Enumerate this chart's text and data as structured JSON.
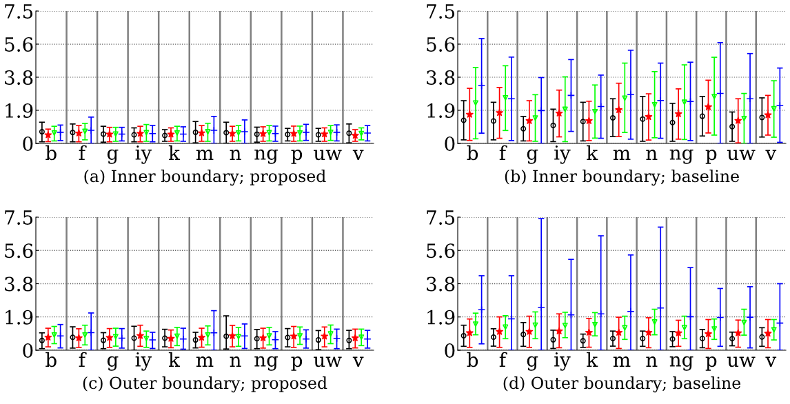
{
  "chart_data": [
    {
      "type": "scatter",
      "xlabel": "(a) Inner boundary; proposed",
      "categories": [
        "b",
        "f",
        "g",
        "iy",
        "k",
        "m",
        "n",
        "ng",
        "p",
        "uw",
        "v"
      ],
      "ylim": [
        0,
        7.5
      ],
      "yticks": [
        0,
        {
          "value": 1.875,
          "label": "1.9"
        },
        {
          "value": 3.75,
          "label": "3.8"
        },
        {
          "value": 5.625,
          "label": "5.6"
        },
        7.5
      ],
      "grid": "y",
      "series": [
        {
          "color": "#000000",
          "marker": "circle",
          "values": [
            0.66,
            0.62,
            0.53,
            0.49,
            0.45,
            0.63,
            0.61,
            0.52,
            0.51,
            0.49,
            0.58
          ],
          "errors": [
            [
              0.09,
              1.2
            ],
            [
              0.09,
              1.1
            ],
            [
              0.07,
              0.97
            ],
            [
              0.09,
              0.88
            ],
            [
              0.12,
              0.78
            ],
            [
              0.03,
              1.24
            ],
            [
              0.01,
              1.2
            ],
            [
              0.07,
              0.92
            ],
            [
              0.14,
              0.85
            ],
            [
              0.12,
              0.85
            ],
            [
              0.03,
              1.1
            ]
          ]
        },
        {
          "color": "#ff0000",
          "marker": "star",
          "values": [
            0.48,
            0.58,
            0.52,
            0.56,
            0.52,
            0.59,
            0.56,
            0.55,
            0.56,
            0.53,
            0.45
          ],
          "errors": [
            [
              0.1,
              0.81
            ],
            [
              0.09,
              1.01
            ],
            [
              0.09,
              0.91
            ],
            [
              0.09,
              0.97
            ],
            [
              0.12,
              0.88
            ],
            [
              0.12,
              1.01
            ],
            [
              0.12,
              0.97
            ],
            [
              0.12,
              0.94
            ],
            [
              0.12,
              0.98
            ],
            [
              0.12,
              0.88
            ],
            [
              0.12,
              0.78
            ]
          ]
        },
        {
          "color": "#00ff00",
          "marker": "triangle",
          "values": [
            0.59,
            0.68,
            0.53,
            0.61,
            0.59,
            0.66,
            0.59,
            0.61,
            0.59,
            0.63,
            0.56
          ],
          "errors": [
            [
              0.14,
              0.97
            ],
            [
              0.2,
              1.13
            ],
            [
              0.12,
              0.91
            ],
            [
              0.12,
              1.07
            ],
            [
              0.14,
              0.97
            ],
            [
              0.12,
              1.14
            ],
            [
              0.14,
              1.01
            ],
            [
              0.14,
              1.01
            ],
            [
              0.14,
              0.98
            ],
            [
              0.17,
              1.01
            ],
            [
              0.2,
              0.88
            ]
          ]
        },
        {
          "color": "#0000ff",
          "marker": "cross",
          "values": [
            0.63,
            0.74,
            0.53,
            0.56,
            0.53,
            0.74,
            0.66,
            0.56,
            0.63,
            0.63,
            0.59
          ],
          "errors": [
            [
              0.16,
              1.04
            ],
            [
              0,
              1.49
            ],
            [
              0.14,
              0.91
            ],
            [
              0.09,
              1.02
            ],
            [
              0.12,
              0.94
            ],
            [
              0,
              1.53
            ],
            [
              0,
              1.33
            ],
            [
              0.12,
              0.98
            ],
            [
              0.17,
              1.08
            ],
            [
              0.14,
              1.05
            ],
            [
              0.14,
              1.01
            ]
          ]
        }
      ]
    },
    {
      "type": "scatter",
      "xlabel": "(b) Inner boundary; baseline",
      "categories": [
        "b",
        "f",
        "g",
        "iy",
        "k",
        "m",
        "n",
        "ng",
        "p",
        "uw",
        "v"
      ],
      "ylim": [
        0,
        7.5
      ],
      "yticks": [
        0,
        {
          "value": 1.875,
          "label": "1.9"
        },
        {
          "value": 3.75,
          "label": "3.8"
        },
        {
          "value": 5.625,
          "label": "5.6"
        },
        7.5
      ],
      "grid": "y",
      "series": [
        {
          "color": "#000000",
          "marker": "circle",
          "values": [
            1.31,
            1.27,
            0.83,
            1.02,
            1.24,
            1.45,
            1.38,
            1.18,
            1.54,
            0.95,
            1.47
          ],
          "errors": [
            [
              0.2,
              2.42
            ],
            [
              0.2,
              2.33
            ],
            [
              0.14,
              1.53
            ],
            [
              0.1,
              1.94
            ],
            [
              0.14,
              2.33
            ],
            [
              0.39,
              2.53
            ],
            [
              0.12,
              2.66
            ],
            [
              0.12,
              2.27
            ],
            [
              0.42,
              2.66
            ],
            [
              0.12,
              1.78
            ],
            [
              0.36,
              2.58
            ]
          ]
        },
        {
          "color": "#ff0000",
          "marker": "star",
          "values": [
            1.64,
            1.74,
            1.28,
            1.71,
            1.28,
            1.9,
            1.51,
            1.67,
            2.07,
            1.29,
            1.61
          ],
          "errors": [
            [
              0.17,
              3.12
            ],
            [
              0.29,
              3.17
            ],
            [
              0.14,
              2.42
            ],
            [
              0.37,
              3.02
            ],
            [
              0.16,
              2.39
            ],
            [
              0.39,
              3.41
            ],
            [
              0.19,
              2.81
            ],
            [
              0.24,
              3.09
            ],
            [
              0.59,
              3.58
            ],
            [
              0.03,
              2.53
            ],
            [
              0.47,
              2.72
            ]
          ]
        },
        {
          "color": "#00ff00",
          "marker": "triangle",
          "values": [
            2.29,
            2.58,
            1.44,
            1.93,
            1.8,
            2.56,
            2.19,
            2.33,
            2.65,
            1.41,
            1.96
          ],
          "errors": [
            [
              0.26,
              4.3
            ],
            [
              0.73,
              4.4
            ],
            [
              0.12,
              2.76
            ],
            [
              0.1,
              3.77
            ],
            [
              0.3,
              3.31
            ],
            [
              0.62,
              4.55
            ],
            [
              0.32,
              4.07
            ],
            [
              0.22,
              4.45
            ],
            [
              0.47,
              4.88
            ],
            [
              0,
              2.83
            ],
            [
              0.35,
              3.55
            ]
          ]
        },
        {
          "color": "#0000ff",
          "marker": "cross",
          "values": [
            3.27,
            2.53,
            1.86,
            2.72,
            2.09,
            2.76,
            2.43,
            2.37,
            2.83,
            2.53,
            2.14
          ],
          "errors": [
            [
              0.58,
              5.94
            ],
            [
              0.16,
              4.89
            ],
            [
              0,
              3.73
            ],
            [
              0.68,
              4.75
            ],
            [
              0.29,
              3.87
            ],
            [
              0.24,
              5.28
            ],
            [
              0.29,
              4.55
            ],
            [
              0.16,
              4.6
            ],
            [
              0,
              5.71
            ],
            [
              0,
              5.09
            ],
            [
              0.06,
              4.27
            ]
          ]
        }
      ]
    },
    {
      "type": "scatter",
      "xlabel": "(c) Outer boundary; proposed",
      "categories": [
        "b",
        "f",
        "g",
        "iy",
        "k",
        "m",
        "n",
        "ng",
        "p",
        "uw",
        "v"
      ],
      "ylim": [
        0,
        7.5
      ],
      "yticks": [
        0,
        {
          "value": 1.875,
          "label": "1.9"
        },
        {
          "value": 3.75,
          "label": "3.8"
        },
        {
          "value": 5.625,
          "label": "5.6"
        },
        7.5
      ],
      "grid": "y",
      "series": [
        {
          "color": "#000000",
          "marker": "circle",
          "values": [
            0.55,
            0.73,
            0.56,
            0.68,
            0.68,
            0.58,
            0.79,
            0.65,
            0.72,
            0.58,
            0.55
          ],
          "errors": [
            [
              0.09,
              0.98
            ],
            [
              0.12,
              1.32
            ],
            [
              0.09,
              0.99
            ],
            [
              0,
              1.35
            ],
            [
              0.19,
              1.18
            ],
            [
              0.13,
              1.01
            ],
            [
              0.07,
              1.94
            ],
            [
              0.09,
              1.17
            ],
            [
              0.19,
              1.22
            ],
            [
              0.03,
              1.11
            ],
            [
              0.09,
              1.12
            ]
          ]
        },
        {
          "color": "#ff0000",
          "marker": "star",
          "values": [
            0.73,
            0.69,
            0.71,
            0.82,
            0.66,
            0.72,
            0.81,
            0.69,
            0.79,
            0.79,
            0.69
          ],
          "errors": [
            [
              0.19,
              1.24
            ],
            [
              0.16,
              1.21
            ],
            [
              0.16,
              1.22
            ],
            [
              0.22,
              1.41
            ],
            [
              0.14,
              1.14
            ],
            [
              0.17,
              1.24
            ],
            [
              0.19,
              1.4
            ],
            [
              0.12,
              1.24
            ],
            [
              0.16,
              1.34
            ],
            [
              0.19,
              1.31
            ],
            [
              0.13,
              1.19
            ]
          ]
        },
        {
          "color": "#00ff00",
          "marker": "triangle",
          "values": [
            0.86,
            0.86,
            0.76,
            0.66,
            0.79,
            0.86,
            0.76,
            0.81,
            0.81,
            0.92,
            0.73
          ],
          "errors": [
            [
              0.37,
              1.34
            ],
            [
              0.3,
              1.41
            ],
            [
              0.23,
              1.24
            ],
            [
              0.16,
              1.08
            ],
            [
              0.26,
              1.29
            ],
            [
              0.3,
              1.37
            ],
            [
              0.22,
              1.28
            ],
            [
              0.3,
              1.29
            ],
            [
              0.33,
              1.31
            ],
            [
              0.37,
              1.42
            ],
            [
              0.26,
              1.19
            ]
          ]
        },
        {
          "color": "#0000ff",
          "marker": "cross",
          "values": [
            0.81,
            0.99,
            0.68,
            0.58,
            0.63,
            0.98,
            0.81,
            0.59,
            0.63,
            0.66,
            0.63
          ],
          "errors": [
            [
              0.13,
              1.45
            ],
            [
              0,
              2.1
            ],
            [
              0.12,
              1.22
            ],
            [
              0.1,
              1.01
            ],
            [
              0.06,
              1.24
            ],
            [
              0,
              2.23
            ],
            [
              0.1,
              1.48
            ],
            [
              0.09,
              1.05
            ],
            [
              0.12,
              1.15
            ],
            [
              0.09,
              1.19
            ],
            [
              0.12,
              1.12
            ]
          ]
        }
      ]
    },
    {
      "type": "scatter",
      "xlabel": "(d) Outer boundary; baseline",
      "categories": [
        "b",
        "f",
        "g",
        "iy",
        "k",
        "m",
        "n",
        "ng",
        "p",
        "uw",
        "v"
      ],
      "ylim": [
        0,
        7.5
      ],
      "yticks": [
        0,
        {
          "value": 1.875,
          "label": "1.9"
        },
        {
          "value": 3.75,
          "label": "3.8"
        },
        {
          "value": 5.625,
          "label": "5.6"
        },
        7.5
      ],
      "grid": "y",
      "series": [
        {
          "color": "#000000",
          "marker": "circle",
          "values": [
            0.82,
            0.74,
            0.89,
            0.59,
            0.53,
            0.66,
            0.66,
            0.63,
            0.66,
            0.65,
            0.75
          ],
          "errors": [
            [
              0.22,
              1.41
            ],
            [
              0.23,
              1.21
            ],
            [
              0.22,
              1.56
            ],
            [
              0.1,
              1.13
            ],
            [
              0.16,
              0.91
            ],
            [
              0.23,
              1.08
            ],
            [
              0.22,
              1.08
            ],
            [
              0.2,
              1.05
            ],
            [
              0.14,
              1.17
            ],
            [
              0.25,
              1.02
            ],
            [
              0.22,
              1.27
            ]
          ]
        },
        {
          "color": "#ff0000",
          "marker": "star",
          "values": [
            0.98,
            1.05,
            1.05,
            1.08,
            1.0,
            1.0,
            1.0,
            0.97,
            0.92,
            0.97,
            0.95
          ],
          "errors": [
            [
              0.16,
              1.76
            ],
            [
              0.16,
              1.88
            ],
            [
              0.16,
              1.92
            ],
            [
              0.14,
              2.05
            ],
            [
              0.17,
              1.79
            ],
            [
              0.1,
              1.86
            ],
            [
              0.14,
              1.83
            ],
            [
              0.22,
              1.69
            ],
            [
              0.1,
              1.73
            ],
            [
              0.17,
              1.7
            ],
            [
              0.14,
              1.73
            ]
          ]
        },
        {
          "color": "#00ff00",
          "marker": "triangle",
          "values": [
            1.47,
            1.3,
            1.41,
            1.39,
            1.44,
            1.26,
            1.59,
            1.27,
            1.2,
            1.56,
            1.15
          ],
          "errors": [
            [
              0.87,
              2.09
            ],
            [
              0.65,
              1.95
            ],
            [
              0.65,
              2.16
            ],
            [
              0.71,
              2.14
            ],
            [
              0.81,
              2.12
            ],
            [
              0.61,
              1.92
            ],
            [
              0.87,
              2.31
            ],
            [
              0.65,
              1.92
            ],
            [
              0.61,
              1.76
            ],
            [
              0.85,
              2.31
            ],
            [
              0.58,
              1.73
            ]
          ]
        },
        {
          "color": "#0000ff",
          "marker": "cross",
          "values": [
            2.28,
            1.77,
            2.41,
            1.99,
            2.05,
            2.19,
            2.38,
            1.89,
            1.85,
            1.86,
            1.53
          ],
          "errors": [
            [
              0.36,
              4.2
            ],
            [
              0,
              4.2
            ],
            [
              0,
              7.42
            ],
            [
              0,
              5.12
            ],
            [
              0,
              6.45
            ],
            [
              0,
              5.37
            ],
            [
              0,
              6.94
            ],
            [
              0,
              4.66
            ],
            [
              0.22,
              3.48
            ],
            [
              0.13,
              3.58
            ],
            [
              0,
              3.75
            ]
          ]
        }
      ]
    }
  ]
}
